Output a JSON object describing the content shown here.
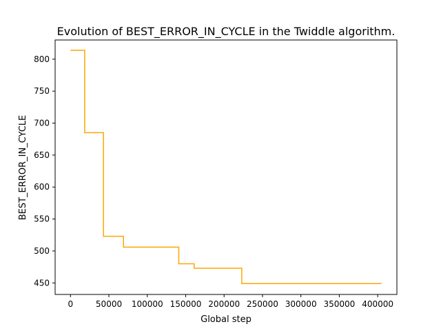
{
  "chart_data": {
    "type": "line",
    "title": "Evolution of BEST_ERROR_IN_CYCLE in the Twiddle algorithm.",
    "xlabel": "Global step",
    "ylabel": "BEST_ERROR_IN_CYCLE",
    "xlim": [
      -20000,
      425000
    ],
    "ylim": [
      432,
      830
    ],
    "xticks": [
      0,
      50000,
      100000,
      150000,
      200000,
      250000,
      300000,
      350000,
      400000
    ],
    "yticks": [
      450,
      500,
      550,
      600,
      650,
      700,
      750,
      800
    ],
    "grid": false,
    "legend": "none",
    "step": "post",
    "series": [
      {
        "color": "#ffa500",
        "x": [
          0,
          18500,
          43000,
          69000,
          141000,
          161000,
          223000,
          405000
        ],
        "y": [
          814,
          685,
          523,
          506,
          480,
          473,
          449,
          449
        ]
      }
    ]
  }
}
